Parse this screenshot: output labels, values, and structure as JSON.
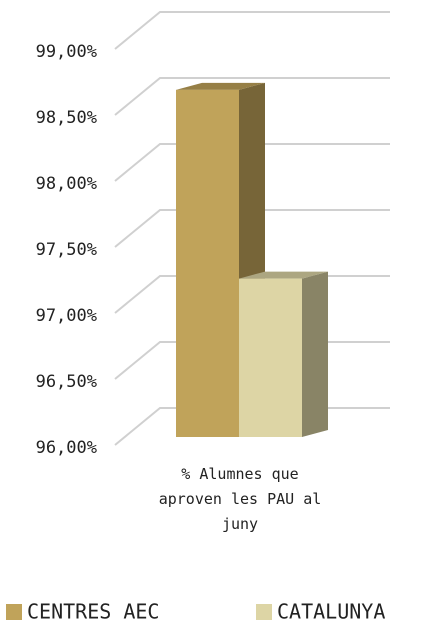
{
  "chart_data": {
    "type": "bar3d",
    "categories": [
      "% Alumnes que aproven les PAU al juny"
    ],
    "series": [
      {
        "name": "CENTRES AEC",
        "color": "#c0a35a",
        "values": [
          98.63
        ]
      },
      {
        "name": "CATALUNYA",
        "color": "#ddd5a5",
        "values": [
          97.2
        ]
      }
    ],
    "ylim": [
      96,
      99
    ],
    "yticks": [
      {
        "value": 96,
        "label": "96,00%"
      },
      {
        "value": 96.5,
        "label": "96,50%"
      },
      {
        "value": 97,
        "label": "97,00%"
      },
      {
        "value": 97.5,
        "label": "97,50%"
      },
      {
        "value": 98,
        "label": "98,00%"
      },
      {
        "value": 98.5,
        "label": "98,50%"
      },
      {
        "value": 99,
        "label": "99,00%"
      }
    ],
    "grid": true,
    "legend": "bottom"
  }
}
